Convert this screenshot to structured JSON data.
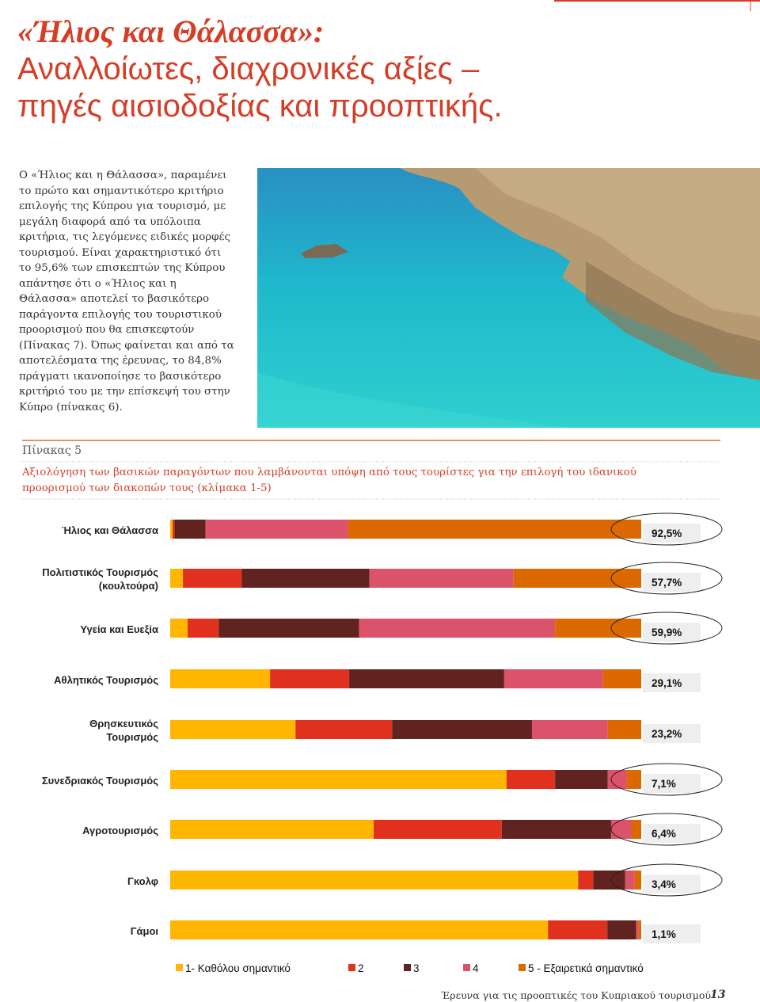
{
  "header": {
    "title_lines": [
      "«Ήλιος και Θάλασσα»:",
      "Αναλλοίωτες, διαχρονικές αξίες –",
      "πηγές αισιοδοξίας και προοπτικής."
    ]
  },
  "body": {
    "lines": [
      "Ο «Ήλιος και η Θάλασσα», παραμένει",
      "το πρώτο και σημαντικότερο κριτήριο",
      "επιλογής της Κύπρου για τουρισμό, με",
      "μεγάλη διαφορά από τα υπόλοιπα",
      "κριτήρια, τις λεγόμενες ειδικές μορφές",
      "τουρισμού. Είναι χαρακτηριστικό ότι",
      "το 95,6% των επισκεπτών της Κύπρου",
      "απάντησε ότι ο «Ήλιος και η",
      "Θάλασσα» αποτελεί το βασικότερο",
      "παράγοντα επιλογής του τουριστικού",
      "προορισμού που θα επισκεφτούν",
      "(Πίνακας 7). Όπως φαίνεται και από τα",
      "αποτελέσματα της έρευνας, το 84,8%",
      "πράγματι ικανοποίησε το βασικότερο",
      "κριτήριό του με την επίσκεψή του στην",
      "Κύπρο (πίνακας 6)."
    ]
  },
  "table_caption": {
    "label": "Πίνακας  5",
    "title_lines": [
      "Αξιολόγηση των βασικών παραγόντων  που λαμβάνονται υπόψη από τους τουρίστες για την επιλογή του ιδανικού",
      "προορισμού των διακοπών τους (κλίμακα 1-5)"
    ]
  },
  "chart_data": {
    "type": "bar",
    "orientation": "horizontal",
    "stacked": true,
    "categories": [
      "Ήλιος και Θάλασσα",
      "Πολιτιστικός Τουρισμός\n(κουλτούρα)",
      "Υγεία και Ευεξία",
      "Αθλητικός Τουρισμός",
      "Θρησκευτικός\nΤουρισμός",
      "Συνεδριακός Τουρισμός",
      "Αγροτουρισμός",
      "Γκολφ",
      "Γάμοι"
    ],
    "series": [
      {
        "name": "1- Καθόλου σημαντικό",
        "color": "#ffb600",
        "values": [
          0.5,
          2.7,
          3.7,
          21.2,
          26.6,
          71.4,
          43.2,
          86.6,
          80.2
        ]
      },
      {
        "name": "2",
        "color": "#e0301e",
        "values": [
          0.4,
          12.5,
          6.6,
          16.8,
          20.5,
          10.3,
          27.2,
          3.2,
          12.6
        ]
      },
      {
        "name": "3",
        "color": "#602320",
        "values": [
          6.6,
          27.1,
          29.8,
          32.9,
          29.7,
          11.2,
          23.2,
          6.8,
          6.1
        ]
      },
      {
        "name": "4",
        "color": "#db536a",
        "values": [
          30.3,
          30.6,
          41.6,
          21.0,
          16.1,
          4.0,
          4.3,
          2.0,
          0.5
        ]
      },
      {
        "name": "5 - Εξαιρετικά σημαντικό",
        "color": "#dc6900",
        "values": [
          62.2,
          27.1,
          18.3,
          8.1,
          7.1,
          3.1,
          2.1,
          1.4,
          0.6
        ]
      }
    ],
    "xlim": [
      0,
      100
    ],
    "summary": {
      "values": [
        92.5,
        57.7,
        59.9,
        29.1,
        23.2,
        7.1,
        6.4,
        3.4,
        1.1
      ],
      "value_labels": [
        "92,5%",
        "57,7%",
        "59,9%",
        "29,1%",
        "23,2%",
        "7,1%",
        "6,4%",
        "3,4%",
        "1,1%"
      ],
      "circled": [
        true,
        true,
        true,
        false,
        false,
        true,
        true,
        true,
        false
      ]
    },
    "legend": "bottom"
  },
  "footer": {
    "text": "Έρευνα για τις προοπτικές του Κυπριακού τουρισμού",
    "page": "13"
  }
}
